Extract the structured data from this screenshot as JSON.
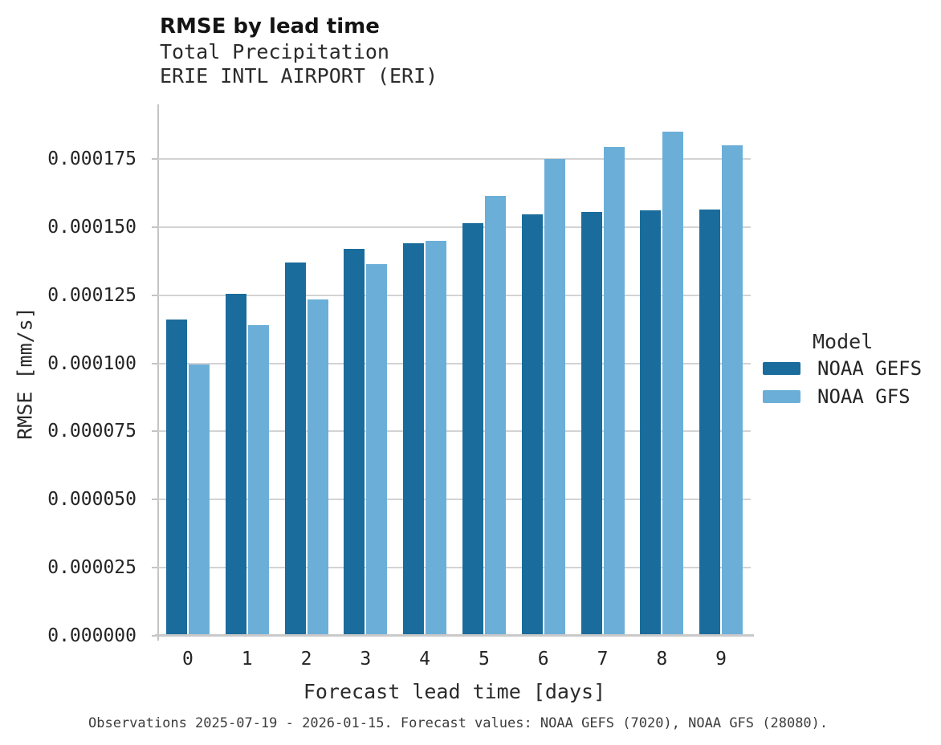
{
  "chart_data": {
    "type": "bar",
    "title": "RMSE by lead time",
    "subtitle_lines": [
      "Total Precipitation",
      "ERIE INTL AIRPORT (ERI)"
    ],
    "xlabel": "Forecast lead time [days]",
    "ylabel": "RMSE [mm/s]",
    "legend_title": "Model",
    "legend_position": "right",
    "grid": true,
    "background": "#ffffff",
    "categories": [
      "0",
      "1",
      "2",
      "3",
      "4",
      "5",
      "6",
      "7",
      "8",
      "9"
    ],
    "series": [
      {
        "name": "NOAA GEFS",
        "color": "#1a6c9c",
        "values": [
          0.000116,
          0.0001255,
          0.000137,
          0.000142,
          0.000144,
          0.0001515,
          0.0001545,
          0.0001555,
          0.000156,
          0.0001565
        ]
      },
      {
        "name": "NOAA GFS",
        "color": "#6bafd8",
        "values": [
          9.95e-05,
          0.000114,
          0.0001235,
          0.0001365,
          0.000145,
          0.0001615,
          0.000175,
          0.0001795,
          0.000185,
          0.00018
        ]
      }
    ],
    "ylim": [
      0,
      0.000195
    ],
    "yticks": [
      0.0,
      2.5e-05,
      5e-05,
      7.5e-05,
      0.0001,
      0.000125,
      0.00015,
      0.000175
    ],
    "ytick_labels": [
      "0.000000",
      "0.000025",
      "0.000050",
      "0.000075",
      "0.000100",
      "0.000125",
      "0.000150",
      "0.000175"
    ],
    "caption": "Observations 2025-07-19 - 2026-01-15. Forecast values: NOAA GEFS (7020), NOAA GFS (28080)."
  },
  "colors": {
    "grid": "#d3d3d3",
    "axis": "#c4c4c4",
    "text": "#242424"
  }
}
